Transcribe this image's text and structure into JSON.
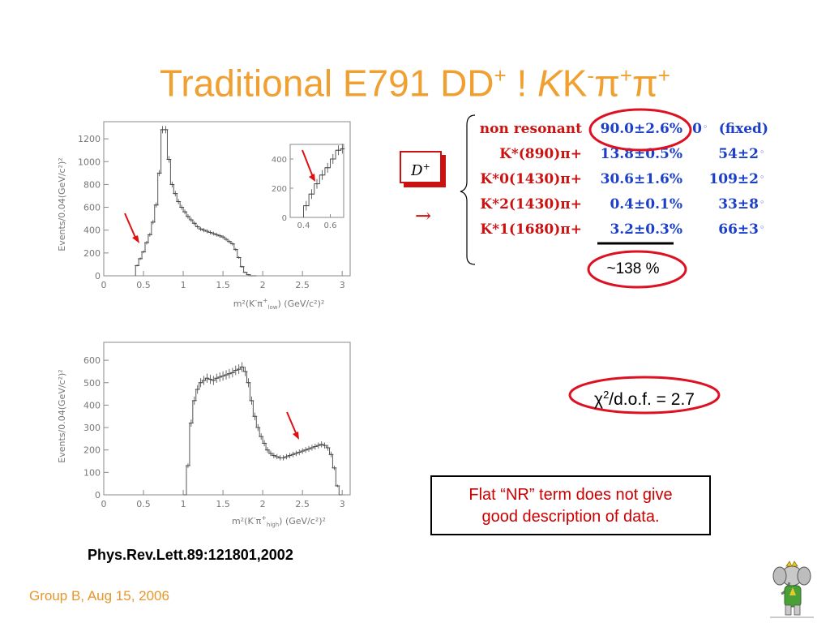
{
  "slide": {
    "title_main": "Traditional E791 DD",
    "title_sup1": "+",
    "title_arrow": " ! ",
    "title_K1": "K",
    "title_K2": "K",
    "title_sup2": "-",
    "title_pi1": "π",
    "title_sup3": "+",
    "title_pi2": "π",
    "title_sup4": "+",
    "reference": "Phys.Rev.Lett.89:121801,2002",
    "footer": "Group B, Aug 15, 2006",
    "note_line1": "Flat “NR” term does not give",
    "note_line2": "good description of data.",
    "chi_symbol": "χ",
    "chi_sup": "2",
    "chi_text": "/d.o.f. = 2.7",
    "sum_text": "~138 %",
    "dplus_label": "D",
    "dplus_sup": "+",
    "arrow_symbol": "→",
    "accent_color": "#f0a030",
    "highlight_color": "#dd1122"
  },
  "fit_table": {
    "rows": [
      {
        "name": "non resonant",
        "fraction": "90.0±2.6%",
        "phase": "0",
        "phase_unit": "◦",
        "extra": "(fixed)",
        "name_color": "#cc1111"
      },
      {
        "name": "K*(890)π+",
        "fraction": "13.8±0.5%",
        "phase": "54±2",
        "phase_unit": "◦",
        "extra": "",
        "name_color": "#cc1111"
      },
      {
        "name": "K*0(1430)π+",
        "fraction": "30.6±1.6%",
        "phase": "109±2",
        "phase_unit": "◦",
        "extra": "",
        "name_color": "#cc1111"
      },
      {
        "name": "K*2(1430)π+",
        "fraction": "0.4±0.1%",
        "phase": "33±8",
        "phase_unit": "◦",
        "extra": "",
        "name_color": "#cc1111"
      },
      {
        "name": "K*1(1680)π+",
        "fraction": "3.2±0.3%",
        "phase": "66±3",
        "phase_unit": "◦",
        "extra": "",
        "name_color": "#cc1111"
      }
    ]
  },
  "chart_data": [
    {
      "type": "line",
      "ylabel": "Events/0.04(GeV/c²)²",
      "xlabel_pre": "m²(K",
      "xlabel_sup": "-",
      "xlabel_pi": "π",
      "xlabel_sup2": "+",
      "xlabel_sub": "low",
      "xlabel_post": ") (GeV/c²)²",
      "xlim": [
        0,
        3.1
      ],
      "ylim": [
        0,
        1350
      ],
      "x_ticks": [
        "0",
        "0.5",
        "1",
        "1.5",
        "2",
        "2.5",
        "3"
      ],
      "y_ticks": [
        "0",
        "200",
        "400",
        "600",
        "800",
        "1000",
        "1200"
      ],
      "x": [
        0.4,
        0.44,
        0.48,
        0.52,
        0.56,
        0.6,
        0.64,
        0.68,
        0.72,
        0.76,
        0.8,
        0.84,
        0.88,
        0.92,
        0.96,
        1.0,
        1.04,
        1.08,
        1.12,
        1.16,
        1.2,
        1.24,
        1.28,
        1.32,
        1.36,
        1.4,
        1.44,
        1.48,
        1.52,
        1.56,
        1.6,
        1.64,
        1.68,
        1.72,
        1.76,
        1.8,
        1.84,
        1.88
      ],
      "y": [
        90,
        150,
        210,
        290,
        360,
        470,
        620,
        900,
        1280,
        1280,
        1020,
        800,
        720,
        650,
        600,
        560,
        520,
        490,
        460,
        430,
        410,
        400,
        390,
        380,
        370,
        360,
        350,
        340,
        320,
        300,
        280,
        230,
        160,
        80,
        30,
        10,
        0,
        0
      ],
      "inset": {
        "xlim": [
          0.3,
          0.7
        ],
        "ylim": [
          0,
          500
        ],
        "x_ticks": [
          "0.4",
          "0.6"
        ],
        "y_ticks": [
          "0",
          "200",
          "400"
        ],
        "x": [
          0.4,
          0.44,
          0.48,
          0.52,
          0.56,
          0.6,
          0.64,
          0.68
        ],
        "y": [
          80,
          160,
          230,
          290,
          340,
          400,
          460,
          470
        ]
      }
    },
    {
      "type": "line",
      "ylabel": "Events/0.04(GeV/c²)²",
      "xlabel_pre": "m²(K",
      "xlabel_sup": "-",
      "xlabel_pi": "π",
      "xlabel_sup2": "+",
      "xlabel_sub": "high",
      "xlabel_post": ") (GeV/c²)²",
      "xlim": [
        0,
        3.1
      ],
      "ylim": [
        0,
        680
      ],
      "x_ticks": [
        "0",
        "0.5",
        "1",
        "1.5",
        "2",
        "2.5",
        "3"
      ],
      "y_ticks": [
        "0",
        "100",
        "200",
        "300",
        "400",
        "500",
        "600"
      ],
      "x": [
        1.0,
        1.04,
        1.08,
        1.12,
        1.16,
        1.2,
        1.24,
        1.28,
        1.32,
        1.36,
        1.4,
        1.44,
        1.48,
        1.52,
        1.56,
        1.6,
        1.64,
        1.68,
        1.72,
        1.76,
        1.8,
        1.84,
        1.88,
        1.92,
        1.96,
        2.0,
        2.04,
        2.08,
        2.12,
        2.16,
        2.2,
        2.24,
        2.28,
        2.32,
        2.36,
        2.4,
        2.44,
        2.48,
        2.52,
        2.56,
        2.6,
        2.64,
        2.68,
        2.72,
        2.76,
        2.8,
        2.84,
        2.88,
        2.92,
        2.96
      ],
      "y": [
        0,
        130,
        320,
        420,
        470,
        500,
        510,
        520,
        515,
        510,
        520,
        525,
        530,
        535,
        540,
        545,
        555,
        560,
        570,
        550,
        500,
        420,
        350,
        300,
        260,
        230,
        200,
        185,
        175,
        170,
        165,
        165,
        170,
        175,
        180,
        185,
        190,
        195,
        200,
        205,
        210,
        215,
        220,
        225,
        220,
        210,
        180,
        120,
        40,
        0
      ]
    }
  ]
}
